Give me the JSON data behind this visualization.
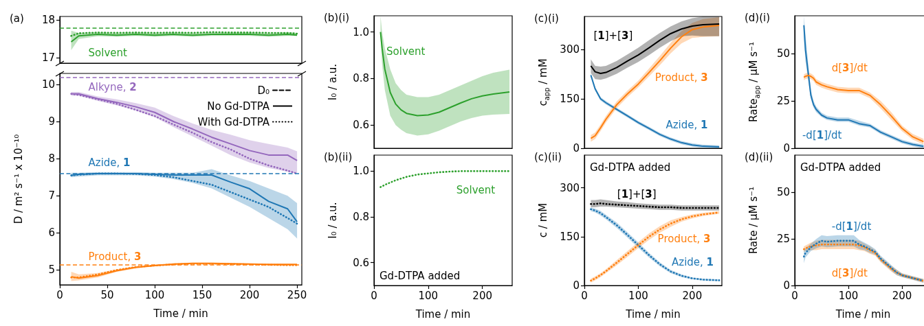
{
  "chart_data": [
    {
      "type": "line",
      "title": "(a)",
      "xlim": [
        0,
        255
      ],
      "ylim": [
        16.85,
        18.1
      ],
      "yticks": [
        17,
        18
      ],
      "tick_labels": "y",
      "x": [
        12,
        20,
        40,
        60,
        80,
        100,
        120,
        140,
        160,
        180,
        200,
        220,
        240,
        250
      ],
      "series": [
        {
          "name": "Solvent",
          "color": "#2ca02c",
          "line_style": "solid",
          "values": [
            17.42,
            17.58,
            17.62,
            17.6,
            17.62,
            17.6,
            17.62,
            17.6,
            17.62,
            17.62,
            17.62,
            17.6,
            17.62,
            17.6
          ],
          "lower": [
            17.2,
            17.5,
            17.57,
            17.56,
            17.58,
            17.56,
            17.58,
            17.56,
            17.58,
            17.58,
            17.58,
            17.56,
            17.58,
            17.58
          ],
          "upper": [
            17.72,
            17.66,
            17.68,
            17.66,
            17.68,
            17.66,
            17.68,
            17.66,
            17.68,
            17.68,
            17.68,
            17.66,
            17.68,
            17.66
          ]
        },
        {
          "color": "#2ca02c",
          "line_style": "dotted",
          "values": [
            17.58,
            17.65,
            17.67,
            17.66,
            17.67,
            17.66,
            17.67,
            17.66,
            17.68,
            17.67,
            17.67,
            17.66,
            17.66,
            17.64
          ]
        }
      ],
      "ref_lines": [
        {
          "axis": "y",
          "value": 17.8,
          "color": "#2ca02c",
          "line_style": "dashed"
        }
      ]
    },
    {
      "type": "line",
      "xlabel": "Time / min",
      "ylabel": "D / m² s⁻¹ x 10⁻¹⁰",
      "xlim": [
        0,
        255
      ],
      "xticks": [
        0,
        50,
        100,
        150,
        200,
        250
      ],
      "ylim": [
        4.6,
        10.3
      ],
      "yticks": [
        5,
        6,
        7,
        8,
        9,
        10
      ],
      "legend": "top right",
      "x": [
        12,
        20,
        40,
        60,
        80,
        100,
        120,
        140,
        160,
        180,
        200,
        220,
        240,
        250
      ],
      "series": [
        {
          "name": "Alkyne, 2",
          "color": "#9467bd",
          "line_style": "solid",
          "values": [
            9.75,
            9.75,
            9.62,
            9.52,
            9.4,
            9.25,
            9.0,
            8.8,
            8.58,
            8.4,
            8.22,
            8.1,
            8.1,
            7.95
          ],
          "lower": [
            9.7,
            9.7,
            9.56,
            9.44,
            9.3,
            9.12,
            8.85,
            8.6,
            8.35,
            8.1,
            7.9,
            7.75,
            7.65,
            7.6
          ],
          "upper": [
            9.8,
            9.8,
            9.68,
            9.6,
            9.5,
            9.38,
            9.15,
            8.95,
            8.78,
            8.65,
            8.5,
            8.4,
            8.3,
            8.2
          ]
        },
        {
          "color": "#9467bd",
          "line_style": "dotted",
          "values": [
            9.75,
            9.72,
            9.6,
            9.48,
            9.32,
            9.15,
            8.92,
            8.7,
            8.45,
            8.25,
            8.0,
            7.82,
            7.68,
            7.6
          ]
        },
        {
          "name": "Azide, 1",
          "color": "#1f77b4",
          "line_style": "solid",
          "values": [
            7.55,
            7.58,
            7.6,
            7.6,
            7.6,
            7.58,
            7.56,
            7.56,
            7.56,
            7.37,
            7.19,
            6.85,
            6.65,
            6.3
          ],
          "lower": [
            7.5,
            7.52,
            7.55,
            7.55,
            7.55,
            7.52,
            7.45,
            7.35,
            7.2,
            6.95,
            6.7,
            6.4,
            6.1,
            5.85
          ],
          "upper": [
            7.62,
            7.62,
            7.64,
            7.64,
            7.64,
            7.62,
            7.62,
            7.62,
            7.72,
            7.55,
            7.4,
            7.2,
            7.0,
            6.8
          ]
        },
        {
          "color": "#1f77b4",
          "line_style": "dotted",
          "values": [
            7.55,
            7.57,
            7.6,
            7.6,
            7.59,
            7.56,
            7.5,
            7.4,
            7.3,
            7.1,
            6.9,
            6.7,
            6.4,
            6.25
          ]
        },
        {
          "name": "Product, 3",
          "color": "#ff7f0e",
          "line_style": "solid",
          "values": [
            4.82,
            4.78,
            4.85,
            4.98,
            5.07,
            5.12,
            5.16,
            5.18,
            5.18,
            5.17,
            5.16,
            5.15,
            5.15,
            5.15
          ],
          "lower": [
            4.7,
            4.72,
            4.8,
            4.95,
            5.04,
            5.1,
            5.14,
            5.16,
            5.16,
            5.15,
            5.14,
            5.13,
            5.13,
            5.13
          ],
          "upper": [
            4.95,
            4.88,
            4.92,
            5.02,
            5.1,
            5.14,
            5.18,
            5.2,
            5.2,
            5.19,
            5.18,
            5.17,
            5.17,
            5.17
          ]
        },
        {
          "color": "#ff7f0e",
          "line_style": "dotted",
          "values": [
            4.8,
            4.8,
            4.88,
            5.0,
            5.08,
            5.12,
            5.15,
            5.17,
            5.17,
            5.16,
            5.15,
            5.14,
            5.13,
            5.13
          ]
        },
        {
          "name": "D₀",
          "color": "#000000",
          "line_style": "dashed",
          "values": [
            null,
            null,
            null,
            null,
            null,
            null,
            null,
            null,
            null,
            null,
            null,
            null,
            null,
            null
          ]
        },
        {
          "name": "No Gd-DTPA",
          "color": "#000000",
          "line_style": "solid",
          "values": [
            null,
            null,
            null,
            null,
            null,
            null,
            null,
            null,
            null,
            null,
            null,
            null,
            null,
            null
          ]
        },
        {
          "name": "With Gd-DTPA",
          "color": "#000000",
          "line_style": "dotted",
          "values": [
            null,
            null,
            null,
            null,
            null,
            null,
            null,
            null,
            null,
            null,
            null,
            null,
            null,
            null
          ]
        }
      ],
      "ref_lines": [
        {
          "axis": "y",
          "value": 10.2,
          "color": "#9467bd",
          "line_style": "dashed"
        },
        {
          "axis": "y",
          "value": 7.6,
          "color": "#1f77b4",
          "line_style": "dashed"
        },
        {
          "axis": "y",
          "value": 5.14,
          "color": "#ff7f0e",
          "line_style": "dashed"
        }
      ]
    },
    {
      "type": "line",
      "title": "(b)(i)",
      "ylabel": "I₀ / a.u.",
      "xlim": [
        0,
        255
      ],
      "ylim": [
        0.5,
        1.07
      ],
      "yticks": [
        0.6,
        0.8,
        {
          "value": 1,
          "label": "1.0"
        }
      ],
      "tick_labels": "y",
      "x": [
        12,
        15,
        20,
        30,
        40,
        50,
        60,
        80,
        100,
        120,
        140,
        160,
        180,
        200,
        220,
        250
      ],
      "series": [
        {
          "name": "Solvent",
          "color": "#2ca02c",
          "line_style": "solid",
          "values": [
            1.0,
            0.93,
            0.84,
            0.74,
            0.69,
            0.665,
            0.65,
            0.64,
            0.643,
            0.655,
            0.675,
            0.695,
            0.713,
            0.725,
            0.733,
            0.742
          ],
          "lower": [
            0.98,
            0.86,
            0.75,
            0.64,
            0.6,
            0.58,
            0.565,
            0.555,
            0.56,
            0.575,
            0.595,
            0.615,
            0.63,
            0.64,
            0.645,
            0.648
          ],
          "upper": [
            1.07,
            1.0,
            0.93,
            0.84,
            0.78,
            0.75,
            0.73,
            0.72,
            0.72,
            0.73,
            0.75,
            0.77,
            0.79,
            0.81,
            0.825,
            0.838
          ]
        }
      ]
    },
    {
      "type": "line",
      "title": "(b)(ii)",
      "xlabel": "Time / min",
      "ylabel": "I₀ / a.u.",
      "xlim": [
        0,
        255
      ],
      "xticks": [
        0,
        100,
        200
      ],
      "ylim": [
        0.5,
        1.07
      ],
      "yticks": [
        0.6,
        0.8,
        {
          "value": 1,
          "label": "1.0"
        }
      ],
      "x": [
        12,
        20,
        40,
        60,
        80,
        100,
        120,
        140,
        160,
        180,
        200,
        220,
        250
      ],
      "series": [
        {
          "name": "Solvent",
          "color": "#2ca02c",
          "line_style": "dotted",
          "values": [
            0.93,
            0.94,
            0.96,
            0.975,
            0.985,
            0.99,
            0.995,
            0.998,
            1.0,
            1.0,
            1.0,
            1.0,
            1.0
          ]
        }
      ],
      "annotations": [
        "Gd-DTPA added"
      ]
    },
    {
      "type": "line",
      "title": "(c)(i)",
      "ylabel": "c$_{app}$ / mM",
      "xlim": [
        0,
        255
      ],
      "ylim": [
        0,
        400
      ],
      "yticks": [
        0,
        150,
        300
      ],
      "tick_labels": "y",
      "x": [
        12,
        20,
        30,
        40,
        60,
        80,
        100,
        120,
        140,
        160,
        180,
        200,
        220,
        250
      ],
      "series": [
        {
          "name": "Azide, 1",
          "color": "#1f77b4",
          "line_style": "solid",
          "values": [
            222,
            180,
            150,
            138,
            118,
            98,
            78,
            60,
            42,
            28,
            17,
            10,
            6,
            4
          ],
          "lower": [
            217,
            175,
            145,
            133,
            113,
            93,
            73,
            55,
            37,
            23,
            12,
            5,
            1,
            0
          ],
          "upper": [
            227,
            185,
            155,
            143,
            123,
            103,
            83,
            65,
            47,
            33,
            22,
            15,
            11,
            9
          ]
        },
        {
          "name": "Product, 3",
          "color": "#ff7f0e",
          "line_style": "solid",
          "values": [
            30,
            38,
            62,
            88,
            132,
            165,
            195,
            230,
            266,
            304,
            338,
            360,
            368,
            373
          ],
          "lower": [
            20,
            28,
            52,
            78,
            122,
            155,
            185,
            218,
            252,
            288,
            318,
            335,
            338,
            340
          ],
          "upper": [
            40,
            48,
            72,
            98,
            142,
            175,
            205,
            242,
            280,
            320,
            355,
            380,
            392,
            398
          ]
        },
        {
          "name": "[1]+[3]",
          "color": "#000000",
          "line_style": "solid",
          "values": [
            250,
            232,
            227,
            230,
            245,
            265,
            283,
            305,
            328,
            348,
            362,
            371,
            375,
            377
          ],
          "lower": [
            228,
            210,
            208,
            212,
            226,
            245,
            262,
            283,
            305,
            325,
            340,
            342,
            340,
            340
          ],
          "upper": [
            270,
            250,
            248,
            250,
            265,
            285,
            305,
            328,
            350,
            370,
            385,
            395,
            400,
            400
          ]
        }
      ]
    },
    {
      "type": "line",
      "title": "(c)(ii)",
      "xlabel": "Time / min",
      "ylabel": "c / mM",
      "xlim": [
        0,
        255
      ],
      "xticks": [
        0,
        100,
        200
      ],
      "ylim": [
        0,
        400
      ],
      "yticks": [
        0,
        150,
        300
      ],
      "x": [
        12,
        20,
        30,
        40,
        60,
        80,
        100,
        120,
        140,
        160,
        180,
        200,
        220,
        250
      ],
      "series": [
        {
          "name": "Azide, 1",
          "color": "#1f77b4",
          "line_style": "dotted",
          "values": [
            234,
            230,
            222,
            210,
            185,
            155,
            124,
            93,
            65,
            43,
            30,
            22,
            18,
            16
          ],
          "lower": [
            228,
            224,
            215,
            203,
            177,
            147,
            116,
            86,
            59,
            38,
            26,
            19,
            15,
            13
          ],
          "upper": [
            240,
            236,
            229,
            217,
            193,
            163,
            132,
            100,
            71,
            48,
            34,
            25,
            21,
            19
          ]
        },
        {
          "name": "Product, 3",
          "color": "#ff7f0e",
          "line_style": "dotted",
          "values": [
            15,
            22,
            32,
            44,
            70,
            97,
            124,
            150,
            172,
            190,
            203,
            212,
            218,
            224
          ],
          "lower": [
            9,
            16,
            26,
            38,
            62,
            88,
            115,
            140,
            162,
            180,
            196,
            206,
            213,
            220
          ],
          "upper": [
            21,
            28,
            38,
            50,
            78,
            106,
            133,
            160,
            182,
            200,
            210,
            218,
            223,
            228
          ]
        },
        {
          "name": "[1]+[3]",
          "color": "#000000",
          "line_style": "dotted",
          "values": [
            250,
            250,
            252,
            250,
            248,
            246,
            244,
            242,
            240,
            240,
            238,
            238,
            238,
            238
          ],
          "lower": [
            240,
            240,
            242,
            242,
            240,
            238,
            236,
            234,
            232,
            232,
            230,
            230,
            230,
            230
          ],
          "upper": [
            262,
            262,
            264,
            262,
            258,
            256,
            252,
            250,
            248,
            248,
            246,
            246,
            246,
            246
          ]
        }
      ],
      "annotations": [
        "Gd-DTPA added"
      ]
    },
    {
      "type": "line",
      "title": "(d)(i)",
      "ylabel": "Rate$_{app}$ / μM s⁻¹",
      "xlim": [
        0,
        255
      ],
      "ylim": [
        0,
        70
      ],
      "yticks": [
        0,
        25,
        50
      ],
      "tick_labels": "y",
      "x": [
        17,
        20,
        25,
        30,
        35,
        40,
        50,
        60,
        80,
        100,
        120,
        140,
        160,
        180,
        200,
        220,
        240
      ],
      "series": [
        {
          "name": "-d[1]/dt",
          "color": "#1f77b4",
          "line_style": "solid",
          "values": [
            65,
            52,
            40,
            28,
            23,
            20.5,
            17.5,
            16,
            15,
            15,
            13,
            12,
            8.5,
            6,
            3.5,
            2,
            1
          ],
          "lower": [
            58,
            46,
            36,
            26,
            21.5,
            19,
            16.5,
            15,
            14,
            14,
            12,
            11,
            7.5,
            5,
            2.5,
            1,
            0
          ],
          "upper": [
            70,
            60,
            45,
            31,
            25,
            22,
            18.8,
            17.2,
            16.2,
            16.2,
            14.5,
            13,
            9.5,
            7,
            4.5,
            3,
            2
          ]
        },
        {
          "name": "d[3]/dt",
          "color": "#ff7f0e",
          "line_style": "solid",
          "values": [
            37.5,
            38,
            38.5,
            38,
            37,
            35,
            33.5,
            32.5,
            31,
            30.5,
            30.5,
            28,
            23,
            17,
            10.5,
            6,
            3.5
          ],
          "lower": [
            36,
            36.5,
            37,
            36.5,
            35.5,
            33.5,
            32,
            31,
            29.5,
            29,
            29,
            26.5,
            21,
            15,
            9,
            4.5,
            2
          ],
          "upper": [
            39,
            39.5,
            40,
            39.5,
            38.5,
            36.5,
            35,
            34,
            32.5,
            32,
            32,
            29.5,
            25,
            19,
            12,
            7.5,
            5
          ]
        }
      ]
    },
    {
      "type": "line",
      "title": "(d)(ii)",
      "xlabel": "Time / min",
      "ylabel": "Rate / μM s⁻¹",
      "xlim": [
        0,
        255
      ],
      "xticks": [
        0,
        100,
        200
      ],
      "ylim": [
        0,
        70
      ],
      "yticks": [
        0,
        25,
        50
      ],
      "x": [
        17,
        20,
        30,
        40,
        50,
        60,
        80,
        100,
        110,
        120,
        130,
        140,
        150,
        160,
        170,
        180,
        190,
        200,
        220,
        240
      ],
      "series": [
        {
          "name": "d[3]/dt",
          "color": "#ff7f0e",
          "line_style": "dotted",
          "values": [
            19.5,
            20,
            21,
            21.5,
            22,
            22,
            22,
            22,
            22,
            21.5,
            20.5,
            19,
            17.5,
            14,
            11.5,
            9,
            7,
            5.5,
            4,
            2.5
          ],
          "lower": [
            18,
            18.5,
            19,
            19,
            19.5,
            19.5,
            19.5,
            19.5,
            19.5,
            19,
            18.5,
            17,
            16,
            12.5,
            10,
            7.5,
            5.5,
            4.5,
            3,
            1.5
          ],
          "upper": [
            21,
            21.5,
            23,
            24,
            24.5,
            24.5,
            24.5,
            24.5,
            24.5,
            24,
            22.5,
            21,
            19,
            15.5,
            13,
            10.5,
            8.5,
            6.5,
            5,
            3.5
          ]
        },
        {
          "name": "-d[1]/dt",
          "color": "#1f77b4",
          "line_style": "dotted",
          "values": [
            15.5,
            17.5,
            20.5,
            22.5,
            24,
            23.5,
            24,
            24,
            24,
            22,
            21,
            19.5,
            18,
            14.5,
            12,
            9.5,
            7,
            5.5,
            4,
            2.5
          ],
          "lower": [
            12,
            15,
            18.5,
            20,
            21,
            20.5,
            21,
            21,
            21,
            19.5,
            19,
            17.5,
            16.5,
            13,
            10.5,
            8,
            5.5,
            4.5,
            3,
            1.5
          ],
          "upper": [
            19,
            20,
            22.5,
            25,
            27,
            26.5,
            27,
            27,
            27,
            24.5,
            23,
            21.5,
            19.5,
            16,
            13.5,
            11,
            8.5,
            6.5,
            5,
            3.5
          ]
        }
      ],
      "annotations": [
        "Gd-DTPA added"
      ]
    }
  ]
}
